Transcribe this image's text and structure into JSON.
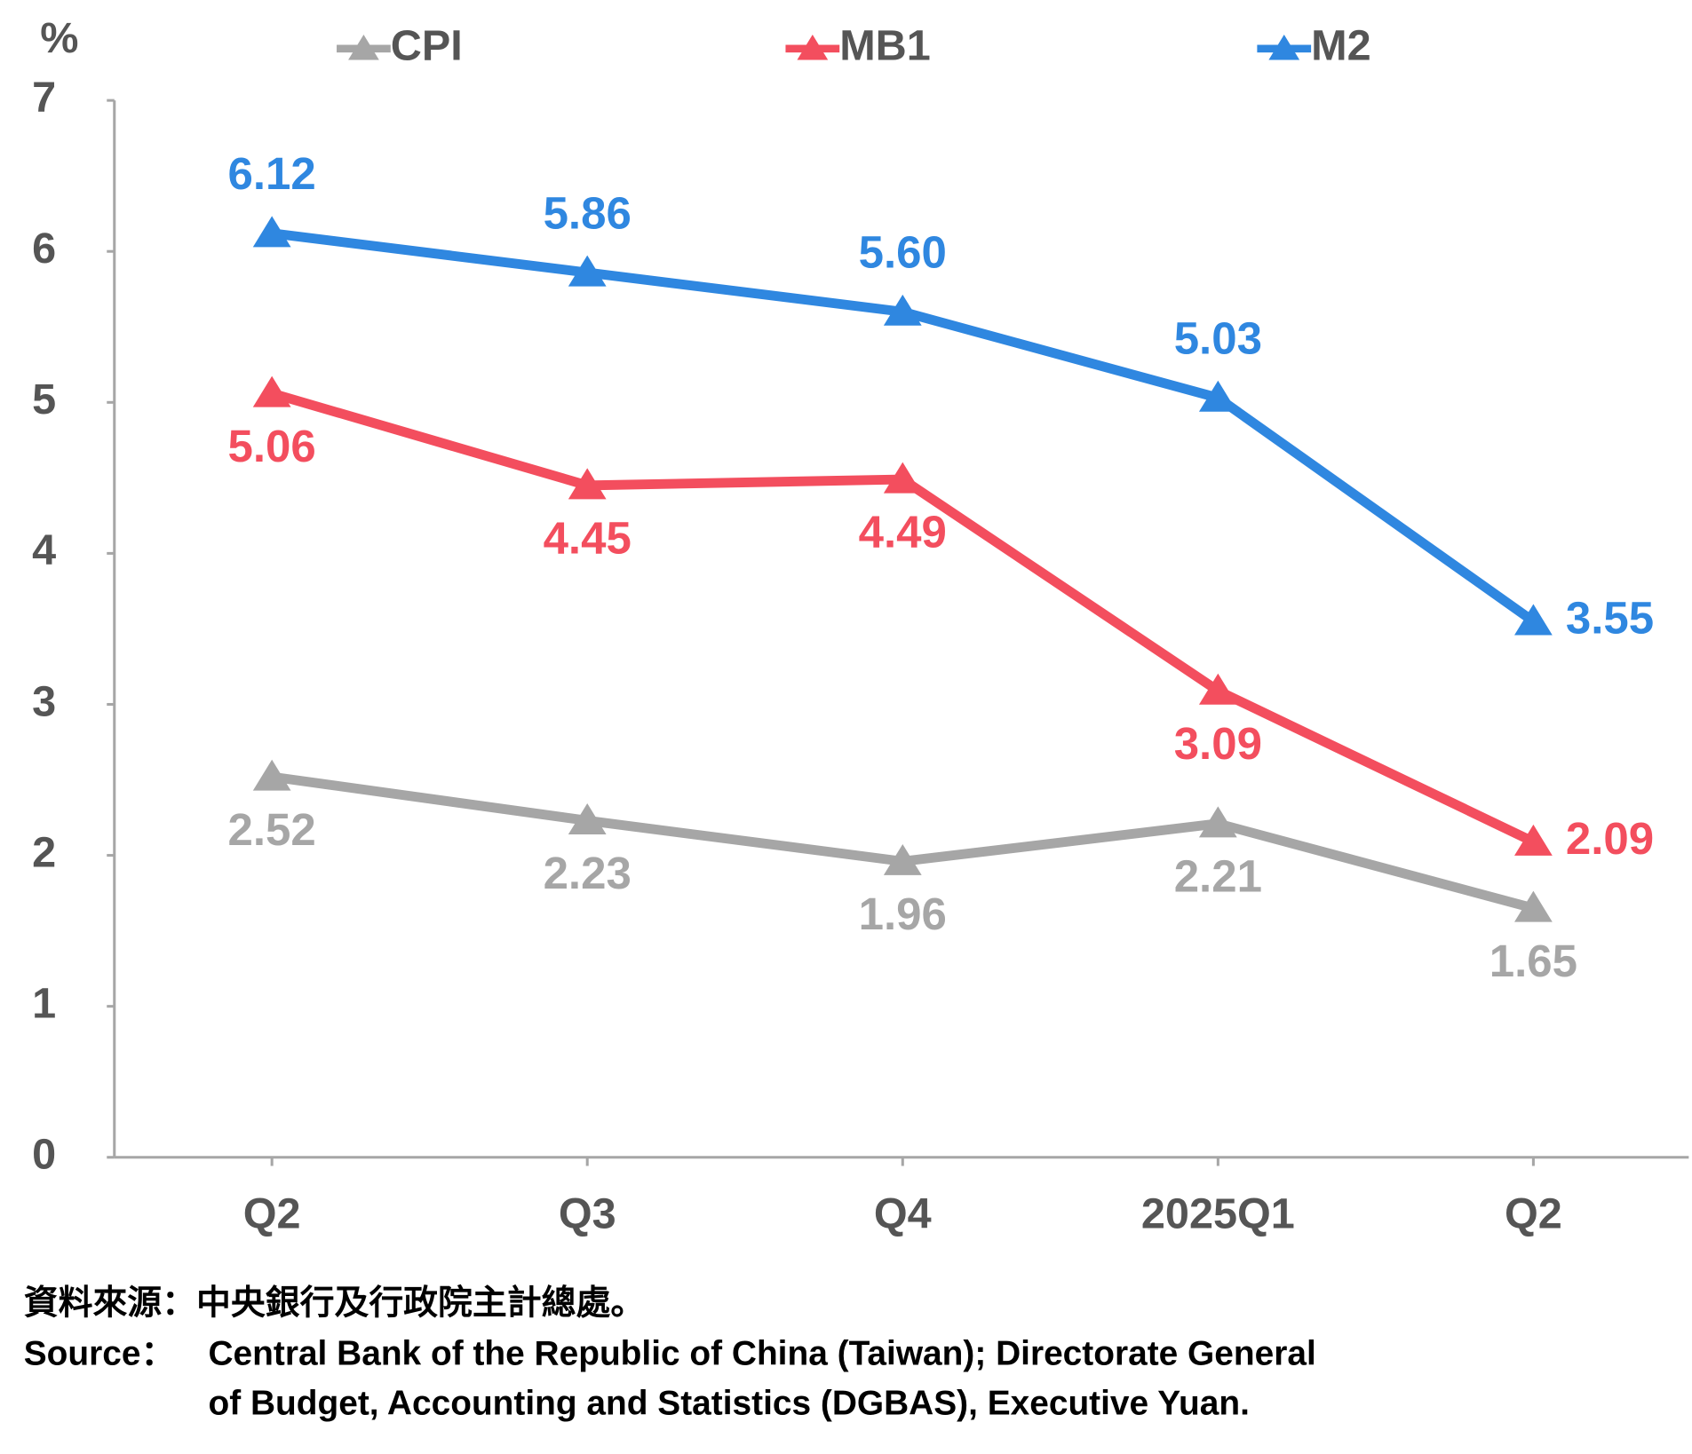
{
  "chart_data": {
    "type": "line",
    "y_label": "%",
    "categories": [
      "Q2",
      "Q3",
      "Q4",
      "2025Q1",
      "Q2"
    ],
    "series": [
      {
        "name": "CPI",
        "color": "#a6a6a6",
        "values": [
          2.52,
          2.23,
          1.96,
          2.21,
          1.65
        ],
        "value_labels": [
          "2.52",
          "2.23",
          "1.96",
          "2.21",
          "1.65"
        ]
      },
      {
        "name": "MB1",
        "color": "#f34e5e",
        "values": [
          5.06,
          4.45,
          4.49,
          3.09,
          2.09
        ],
        "value_labels": [
          "5.06",
          "4.45",
          "4.49",
          "3.09",
          "2.09"
        ]
      },
      {
        "name": "M2",
        "color": "#2f87e0",
        "values": [
          6.12,
          5.86,
          5.6,
          5.03,
          3.55
        ],
        "value_labels": [
          "6.12",
          "5.86",
          "5.60",
          "5.03",
          "3.55"
        ]
      }
    ],
    "ylim": [
      0,
      7
    ],
    "yticks": [
      0,
      1,
      2,
      3,
      4,
      5,
      6,
      7
    ]
  },
  "footer": {
    "zh": "資料來源：中央銀行及行政院主計總處。",
    "source_label": "Source：",
    "source_lines": [
      "Central Bank of the Republic of China (Taiwan); Directorate General",
      "of Budget, Accounting and Statistics (DGBAS), Executive Yuan."
    ]
  }
}
